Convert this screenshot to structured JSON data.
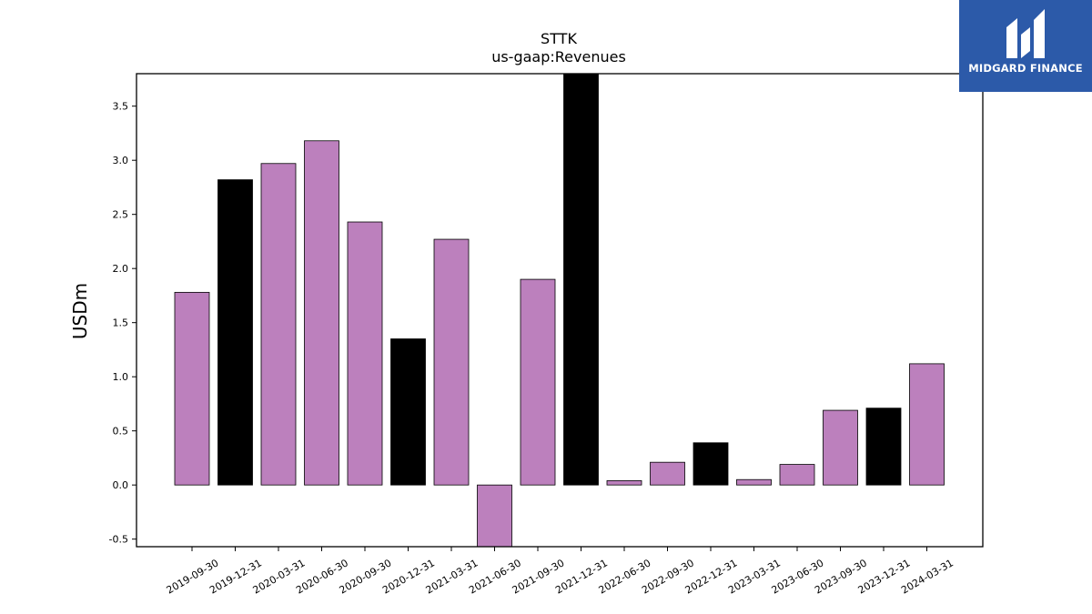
{
  "logo": {
    "text": "MIDGARD FINANCE",
    "background": "#2c5aa9"
  },
  "chart_data": {
    "type": "bar",
    "title": "STTK",
    "subtitle": "us-gaap:Revenues",
    "ylabel": "USDm",
    "xlabel": "",
    "ylim": [
      -0.57,
      3.8
    ],
    "yticks": [
      -0.5,
      0.0,
      0.5,
      1.0,
      1.5,
      2.0,
      2.5,
      3.0,
      3.5
    ],
    "grid": false,
    "colors": {
      "regular": "#bc80bd",
      "year_end": "#000000",
      "edge": "#000000"
    },
    "categories": [
      "2019-09-30",
      "2019-12-31",
      "2020-03-31",
      "2020-06-30",
      "2020-09-30",
      "2020-12-31",
      "2021-03-31",
      "2021-06-30",
      "2021-09-30",
      "2021-12-31",
      "2022-06-30",
      "2022-09-30",
      "2022-12-31",
      "2023-03-31",
      "2023-06-30",
      "2023-09-30",
      "2023-12-31",
      "2024-03-31"
    ],
    "values": [
      1.78,
      2.82,
      2.97,
      3.18,
      2.43,
      1.35,
      2.27,
      -0.6,
      1.9,
      3.8,
      0.04,
      0.21,
      0.39,
      0.05,
      0.19,
      0.69,
      0.71,
      1.12
    ]
  }
}
